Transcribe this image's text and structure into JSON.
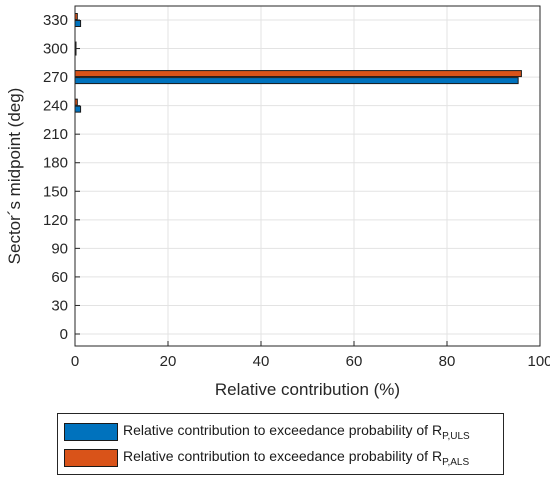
{
  "chart_data": {
    "type": "bar",
    "orientation": "horizontal",
    "categories": [
      "0",
      "30",
      "60",
      "90",
      "120",
      "150",
      "180",
      "210",
      "240",
      "270",
      "300",
      "330"
    ],
    "series": [
      {
        "name": "Relative contribution to exceedance probability of R_P,ULS",
        "label_main": "Relative contribution to exceedance probability of R",
        "label_sub": "P,ULS",
        "color": "#0072BD",
        "values": [
          0,
          0,
          0,
          0,
          0,
          0,
          0,
          0,
          1.2,
          95.3,
          0.2,
          1.2
        ]
      },
      {
        "name": "Relative contribution to exceedance probability of R_P,ALS",
        "label_main": "Relative contribution to exceedance probability of R",
        "label_sub": "P,ALS",
        "color": "#D95319",
        "values": [
          0,
          0,
          0,
          0,
          0,
          0,
          0,
          0,
          0.5,
          96.0,
          0.2,
          0.5
        ]
      }
    ],
    "xlabel": "Relative contribution (%)",
    "ylabel": "Sector´s midpoint (deg)",
    "xlim": [
      0,
      100
    ],
    "xticks": [
      "0",
      "20",
      "40",
      "60",
      "80",
      "100"
    ],
    "grid": true,
    "legend_position": "bottom-outside"
  }
}
